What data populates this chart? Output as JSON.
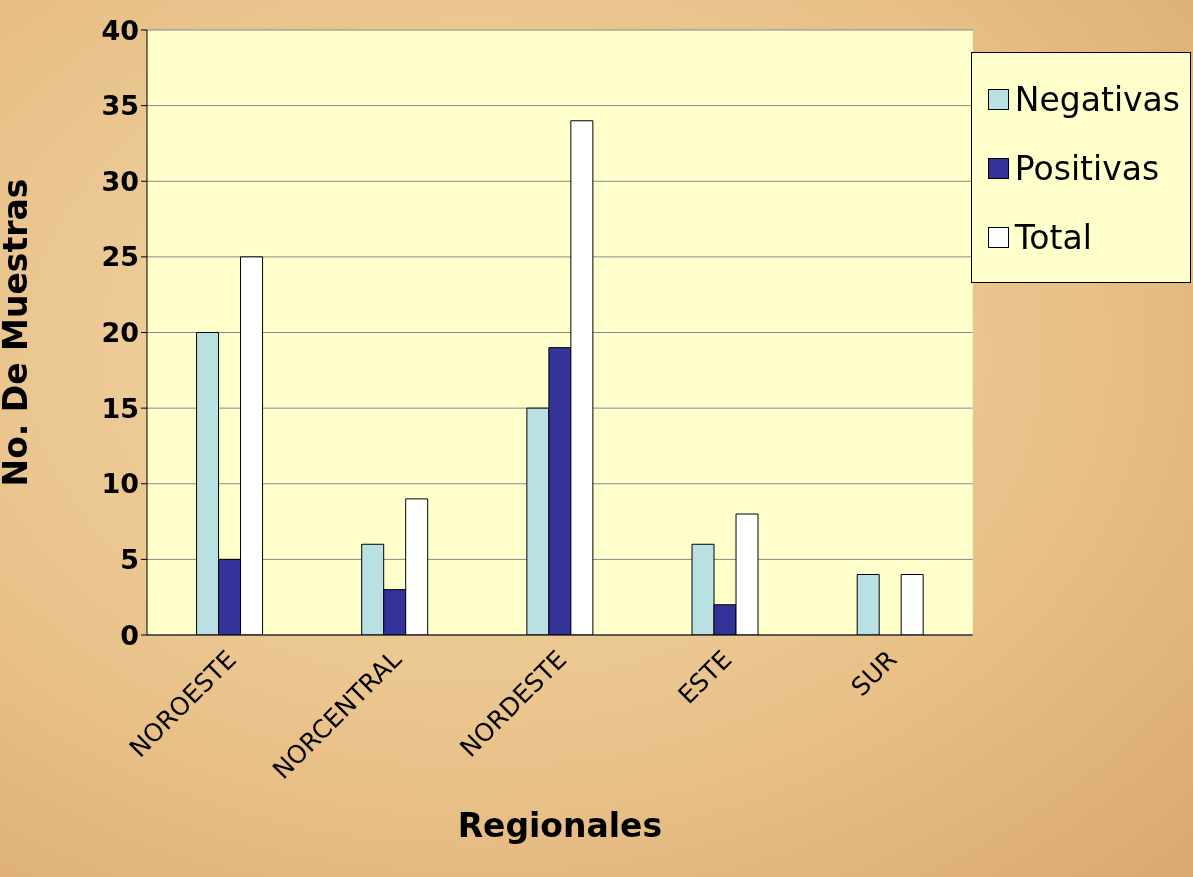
{
  "chart_data": {
    "type": "bar",
    "xlabel": "Regionales",
    "ylabel": "No.  De Muestras",
    "categories": [
      "NOROESTE",
      "NORCENTRAL",
      "NORDESTE",
      "ESTE",
      "SUR"
    ],
    "series": [
      {
        "name": "Negativas",
        "color": "#b9e1e1",
        "values": [
          20,
          6,
          15,
          6,
          4
        ]
      },
      {
        "name": "Positivas",
        "color": "#333399",
        "values": [
          5,
          3,
          19,
          2,
          0
        ]
      },
      {
        "name": "Total",
        "color": "#ffffff",
        "values": [
          25,
          9,
          34,
          8,
          4
        ]
      }
    ],
    "ylim": [
      0,
      40
    ],
    "yticks": [
      0,
      5,
      10,
      15,
      20,
      25,
      30,
      35,
      40
    ],
    "grid": "y",
    "legend": "top right"
  }
}
